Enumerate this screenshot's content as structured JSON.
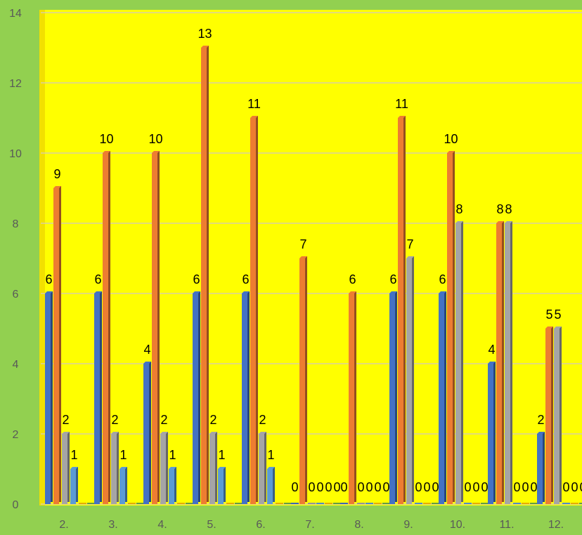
{
  "chart_data": {
    "type": "bar",
    "categories": [
      "2.",
      "3.",
      "4.",
      "5.",
      "6.",
      "7.",
      "8.",
      "9.",
      "10.",
      "11.",
      "12."
    ],
    "series": [
      {
        "values": [
          6,
          6,
          4,
          6,
          6,
          0,
          0,
          6,
          6,
          4,
          2
        ],
        "color": "#4472c4"
      },
      {
        "values": [
          9,
          10,
          10,
          13,
          11,
          7,
          6,
          11,
          10,
          8,
          5
        ],
        "color": "#ed7d31"
      },
      {
        "values": [
          2,
          2,
          2,
          2,
          2,
          0,
          0,
          7,
          8,
          8,
          5
        ],
        "color": "#a5a5a5"
      },
      {
        "values": [
          1,
          1,
          1,
          1,
          1,
          0,
          0,
          0,
          0,
          0,
          0
        ],
        "color": "#5b9bd5"
      },
      {
        "values": [
          0,
          0,
          0,
          0,
          0,
          0,
          0,
          0,
          0,
          0,
          0
        ],
        "color": "#ffc000"
      },
      {
        "values": [
          0,
          0,
          0,
          0,
          0,
          0,
          0,
          0,
          0,
          0,
          0
        ],
        "color": "#70ad47"
      }
    ],
    "yticks": [
      "0",
      "2",
      "4",
      "6",
      "8",
      "10",
      "12",
      "14"
    ],
    "ylim": [
      0,
      14
    ],
    "title": "",
    "xlabel": "",
    "ylabel": "",
    "grid": true,
    "plot_background": "#ffff00",
    "background": "#92d050"
  }
}
